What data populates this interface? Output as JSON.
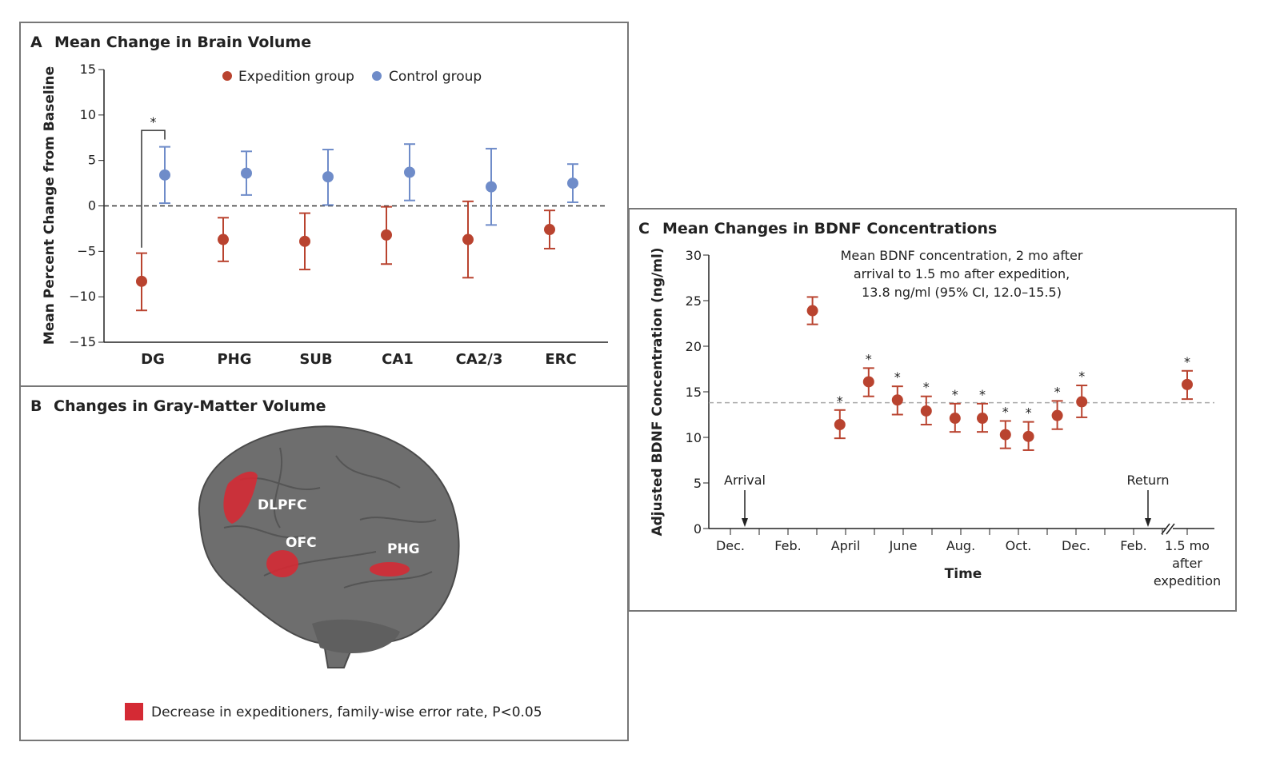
{
  "colors": {
    "expedition": "#b9432f",
    "control": "#6f8cc9",
    "highlight": "#d42a34",
    "frame": "#777777"
  },
  "chart_data": [
    {
      "type": "scatter",
      "panel_letter": "A",
      "title": "Mean Change in Brain Volume",
      "xlabel": "",
      "ylabel": "Mean Percent Change from Baseline",
      "ylim": [
        -15,
        15
      ],
      "yticks": [
        "15",
        "10",
        "5",
        "0",
        "−5",
        "−10",
        "−15"
      ],
      "ytick_values": [
        15,
        10,
        5,
        0,
        -5,
        -10,
        -15
      ],
      "categories": [
        "DG",
        "PHG",
        "SUB",
        "CA1",
        "CA2/3",
        "ERC"
      ],
      "reference_line": 0,
      "legend": [
        "Expedition group",
        "Control group"
      ],
      "legend_position": "top",
      "significance": {
        "category": "DG",
        "label": "*"
      },
      "series": [
        {
          "name": "Expedition group",
          "values": [
            -8.3,
            -3.7,
            -3.9,
            -3.2,
            -3.7,
            -2.6
          ],
          "ci_low": [
            -11.5,
            -6.1,
            -7.0,
            -6.4,
            -7.9,
            -4.7
          ],
          "ci_high": [
            -5.2,
            -1.3,
            -0.8,
            -0.1,
            0.5,
            -0.5
          ]
        },
        {
          "name": "Control group",
          "values": [
            3.4,
            3.6,
            3.2,
            3.7,
            2.1,
            2.5
          ],
          "ci_low": [
            0.3,
            1.2,
            0.1,
            0.6,
            -2.1,
            0.4
          ],
          "ci_high": [
            6.5,
            6.0,
            6.2,
            6.8,
            6.3,
            4.6
          ]
        }
      ]
    },
    {
      "type": "scatter",
      "panel_letter": "C",
      "title": "Mean Changes in BDNF Concentrations",
      "xlabel": "Time",
      "ylabel": "Adjusted BDNF Concentration (ng/ml)",
      "ylim": [
        0,
        30
      ],
      "yticks": [
        "0",
        "5",
        "10",
        "15",
        "20",
        "25",
        "30"
      ],
      "ytick_values": [
        0,
        5,
        10,
        15,
        20,
        25,
        30
      ],
      "xtick_labels": [
        "Dec.",
        "Feb.",
        "April",
        "June",
        "Aug.",
        "Oct.",
        "Dec.",
        "Feb."
      ],
      "xtick_months": [
        0,
        2,
        4,
        6,
        8,
        10,
        12,
        14
      ],
      "after_label": [
        "1.5 mo",
        "after",
        "expedition"
      ],
      "reference_line": 13.8,
      "annotation": [
        "Mean BDNF concentration, 2 mo after",
        "arrival to 1.5 mo after expedition,",
        "13.8 ng/ml (95% CI, 12.0–15.5)"
      ],
      "events": [
        {
          "label": "Arrival",
          "month": 0.5
        },
        {
          "label": "Return",
          "month": 14.5
        }
      ],
      "series": [
        {
          "name": "BDNF",
          "x_months": [
            2.85,
            3.8,
            4.8,
            5.8,
            6.8,
            7.8,
            8.75,
            9.55,
            10.35,
            11.35,
            12.2,
            "after"
          ],
          "values": [
            23.9,
            11.4,
            16.1,
            14.1,
            12.9,
            12.1,
            12.1,
            10.3,
            10.1,
            12.4,
            13.9,
            15.8
          ],
          "ci_low": [
            22.4,
            9.9,
            14.5,
            12.5,
            11.4,
            10.6,
            10.6,
            8.8,
            8.6,
            10.9,
            12.2,
            14.2
          ],
          "ci_high": [
            25.4,
            13.0,
            17.6,
            15.6,
            14.5,
            13.7,
            13.7,
            11.8,
            11.7,
            14.0,
            15.7,
            17.3
          ],
          "significant": [
            false,
            true,
            true,
            true,
            true,
            true,
            true,
            true,
            true,
            true,
            true,
            true
          ]
        }
      ]
    }
  ],
  "panel_b": {
    "letter": "B",
    "title": "Changes in Gray-Matter Volume",
    "regions": [
      "DLPFC",
      "OFC",
      "PHG"
    ],
    "legend": "Decrease in expeditioners, family-wise error rate, P<0.05"
  },
  "star": "*"
}
